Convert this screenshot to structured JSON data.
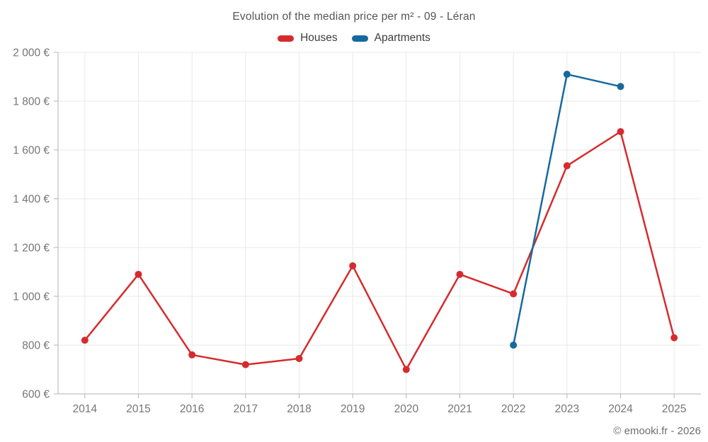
{
  "page": {
    "title": "Evolution of the median price per m² - 09 - Léran",
    "footer_credit": "© emooki.fr - 2026"
  },
  "legend": {
    "items": [
      {
        "label": "Houses",
        "color": "#d62b2e"
      },
      {
        "label": "Apartments",
        "color": "#16699e"
      }
    ]
  },
  "chart_data": {
    "type": "line",
    "title": "Evolution of the median price per m² - 09 - Léran",
    "categories": [
      2014,
      2015,
      2016,
      2017,
      2018,
      2019,
      2020,
      2021,
      2022,
      2023,
      2024,
      2025
    ],
    "series": [
      {
        "name": "Houses",
        "color": "#d62b2e",
        "values": [
          820,
          1090,
          760,
          720,
          745,
          1125,
          700,
          1090,
          1010,
          1535,
          1675,
          830
        ]
      },
      {
        "name": "Apartments",
        "color": "#16699e",
        "values": [
          null,
          null,
          null,
          null,
          null,
          null,
          null,
          null,
          800,
          1910,
          1860,
          null
        ]
      }
    ],
    "ylim": [
      600,
      2000
    ],
    "y_ticks": [
      {
        "value": 600,
        "label": "600 €"
      },
      {
        "value": 800,
        "label": "800 €"
      },
      {
        "value": 1000,
        "label": "1 000 €"
      },
      {
        "value": 1200,
        "label": "1 200 €"
      },
      {
        "value": 1400,
        "label": "1 400 €"
      },
      {
        "value": 1600,
        "label": "1 600 €"
      },
      {
        "value": 1800,
        "label": "1 800 €"
      },
      {
        "value": 2000,
        "label": "2 000 €"
      }
    ],
    "grid": true,
    "legend_position": "top",
    "colors": {
      "gridline": "#e8e8e8",
      "axis": "#b3b3b3",
      "tick_text": "#757575"
    }
  }
}
